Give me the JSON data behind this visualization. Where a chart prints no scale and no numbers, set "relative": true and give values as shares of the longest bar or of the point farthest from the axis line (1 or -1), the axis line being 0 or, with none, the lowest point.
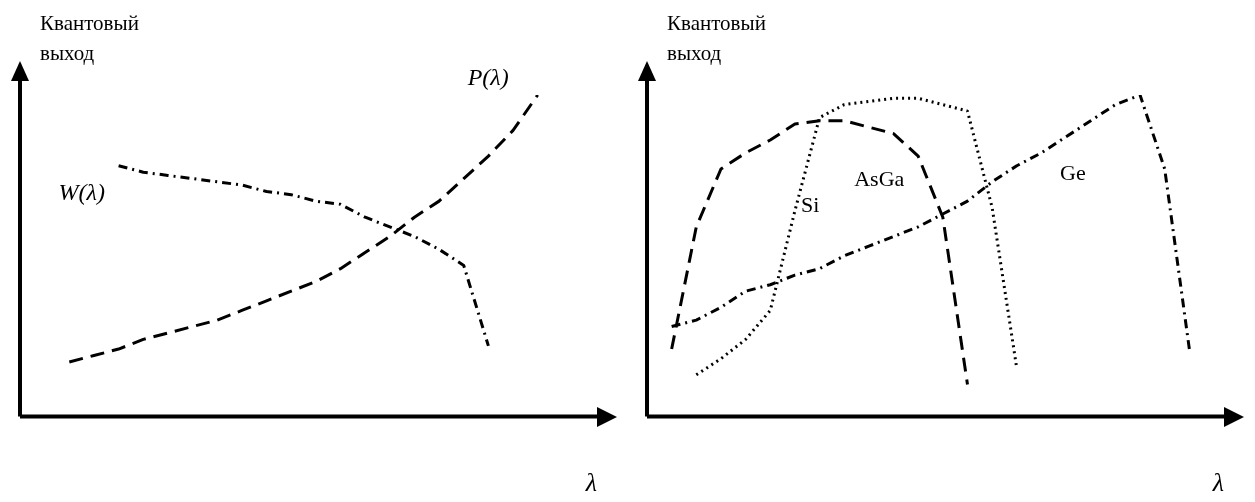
{
  "chart_data": [
    {
      "type": "line",
      "relative": true,
      "ylabel": "Квантовый выход",
      "xlabel": "λ",
      "grid": false,
      "legend": false,
      "marker": "none",
      "categories": [
        null,
        null,
        null,
        null,
        null,
        null,
        null,
        null,
        null,
        null,
        null,
        null,
        null,
        null,
        null,
        null,
        null,
        null,
        null,
        null,
        null,
        null,
        null,
        null
      ],
      "series": [
        {
          "name": "P(λ)",
          "color": "#000000",
          "line_style": "dashed",
          "values": [
            null,
            null,
            0.17,
            0.19,
            0.21,
            0.24,
            0.26,
            0.28,
            0.3,
            0.33,
            0.36,
            0.39,
            0.42,
            0.46,
            0.51,
            0.56,
            0.62,
            0.67,
            0.74,
            0.81,
            0.89,
            1.0,
            null,
            null
          ]
        },
        {
          "name": "W(λ)",
          "color": "#000000",
          "line_style": "dashdot",
          "values": [
            null,
            null,
            null,
            null,
            0.78,
            0.76,
            0.75,
            0.74,
            0.73,
            0.72,
            0.7,
            0.69,
            0.67,
            0.66,
            0.62,
            0.59,
            0.56,
            0.52,
            0.47,
            0.22,
            null,
            null,
            null,
            null
          ]
        }
      ]
    },
    {
      "type": "line",
      "relative": true,
      "ylabel": "Квантовый выход",
      "xlabel": "λ",
      "grid": false,
      "legend": false,
      "marker": "none",
      "categories": [
        null,
        null,
        null,
        null,
        null,
        null,
        null,
        null,
        null,
        null,
        null,
        null,
        null,
        null,
        null,
        null,
        null,
        null,
        null,
        null,
        null,
        null,
        null,
        null
      ],
      "series": [
        {
          "name": "AsGa",
          "color": "#000000",
          "line_style": "dashed",
          "values": [
            null,
            0.21,
            0.59,
            0.77,
            0.82,
            0.86,
            0.91,
            0.92,
            0.92,
            0.9,
            0.88,
            0.81,
            0.62,
            0.1,
            null,
            null,
            null,
            null,
            null,
            null,
            null,
            null,
            null,
            null
          ]
        },
        {
          "name": "Si",
          "color": "#000000",
          "line_style": "dotted",
          "values": [
            null,
            null,
            0.13,
            0.18,
            0.24,
            0.33,
            0.64,
            0.93,
            0.97,
            0.98,
            0.99,
            0.99,
            0.97,
            0.95,
            0.65,
            0.15,
            null,
            null,
            null,
            null,
            null,
            null,
            null,
            null
          ]
        },
        {
          "name": "Ge",
          "color": "#000000",
          "line_style": "dashdot",
          "values": [
            null,
            0.28,
            0.3,
            0.34,
            0.39,
            0.41,
            0.44,
            0.46,
            0.5,
            0.53,
            0.56,
            0.59,
            0.63,
            0.67,
            0.73,
            0.78,
            0.82,
            0.87,
            0.92,
            0.97,
            1.0,
            0.77,
            0.21,
            null
          ]
        }
      ]
    }
  ]
}
